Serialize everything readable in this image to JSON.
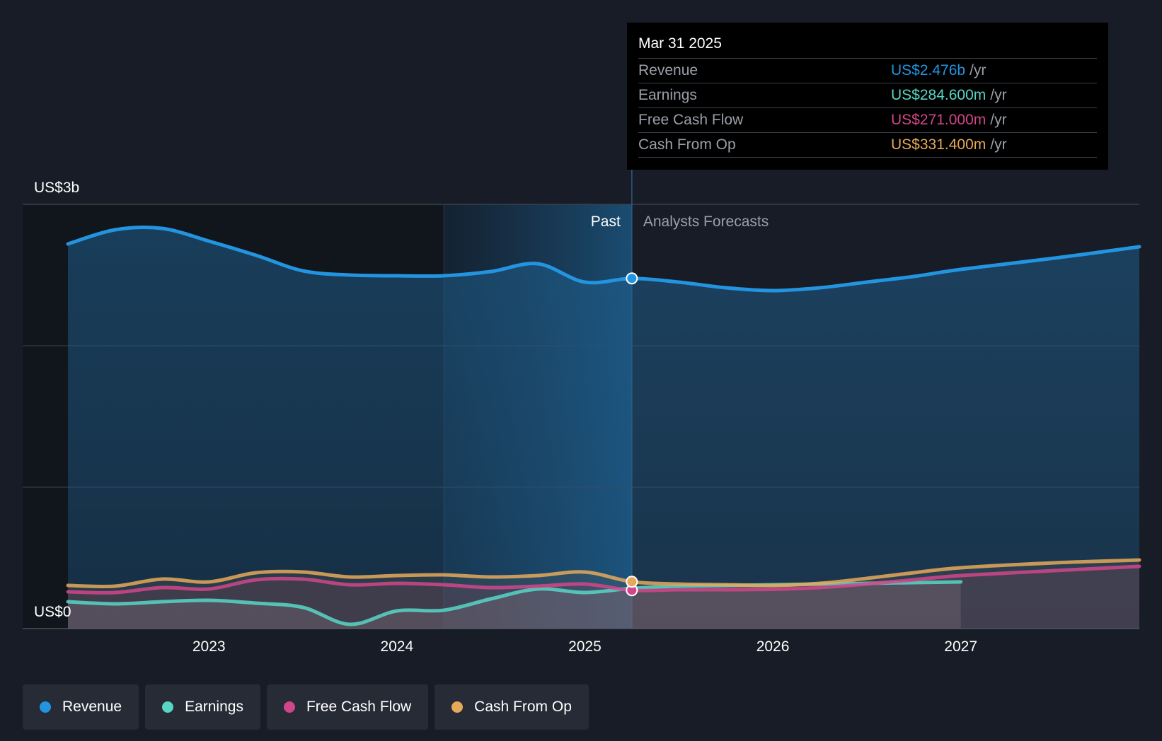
{
  "chart_data": {
    "type": "area",
    "y_axis": {
      "top_label": "US$3b",
      "bottom_label": "US$0",
      "ylim": [
        0,
        3000
      ]
    },
    "x_axis": {
      "ticks": [
        "2023",
        "2024",
        "2025",
        "2026",
        "2027"
      ],
      "xlim": [
        2022.25,
        2027.95
      ]
    },
    "section_labels": {
      "past": "Past",
      "forecast": "Analysts Forecasts"
    },
    "divider_x": 2025.25,
    "series": [
      {
        "name": "Revenue",
        "color": "#2394df",
        "points": [
          [
            2022.25,
            2720
          ],
          [
            2022.5,
            2820
          ],
          [
            2022.75,
            2830
          ],
          [
            2023.0,
            2740
          ],
          [
            2023.25,
            2640
          ],
          [
            2023.5,
            2530
          ],
          [
            2023.75,
            2500
          ],
          [
            2024.0,
            2495
          ],
          [
            2024.25,
            2495
          ],
          [
            2024.5,
            2525
          ],
          [
            2024.75,
            2580
          ],
          [
            2025.0,
            2450
          ],
          [
            2025.25,
            2476
          ],
          [
            2025.5,
            2450
          ],
          [
            2025.75,
            2410
          ],
          [
            2026.0,
            2390
          ],
          [
            2026.25,
            2410
          ],
          [
            2026.5,
            2450
          ],
          [
            2026.75,
            2490
          ],
          [
            2027.0,
            2540
          ],
          [
            2027.5,
            2620
          ],
          [
            2027.95,
            2700
          ]
        ]
      },
      {
        "name": "Earnings",
        "color": "#58d6c5",
        "points": [
          [
            2022.25,
            190
          ],
          [
            2022.5,
            175
          ],
          [
            2022.75,
            190
          ],
          [
            2023.0,
            200
          ],
          [
            2023.25,
            180
          ],
          [
            2023.5,
            150
          ],
          [
            2023.75,
            30
          ],
          [
            2024.0,
            125
          ],
          [
            2024.25,
            130
          ],
          [
            2024.5,
            210
          ],
          [
            2024.75,
            280
          ],
          [
            2025.0,
            255
          ],
          [
            2025.25,
            284.6
          ],
          [
            2025.5,
            300
          ],
          [
            2025.75,
            305
          ],
          [
            2026.0,
            310
          ],
          [
            2026.25,
            315
          ],
          [
            2026.5,
            320
          ],
          [
            2026.75,
            325
          ],
          [
            2027.0,
            330
          ]
        ]
      },
      {
        "name": "Free Cash Flow",
        "color": "#d1468a",
        "points": [
          [
            2022.25,
            260
          ],
          [
            2022.5,
            255
          ],
          [
            2022.75,
            290
          ],
          [
            2023.0,
            280
          ],
          [
            2023.25,
            345
          ],
          [
            2023.5,
            350
          ],
          [
            2023.75,
            310
          ],
          [
            2024.0,
            320
          ],
          [
            2024.25,
            310
          ],
          [
            2024.5,
            290
          ],
          [
            2024.75,
            300
          ],
          [
            2025.0,
            315
          ],
          [
            2025.25,
            271
          ],
          [
            2025.5,
            275
          ],
          [
            2025.75,
            275
          ],
          [
            2026.0,
            278
          ],
          [
            2026.25,
            290
          ],
          [
            2026.5,
            315
          ],
          [
            2026.75,
            345
          ],
          [
            2027.0,
            375
          ],
          [
            2027.5,
            410
          ],
          [
            2027.95,
            440
          ]
        ]
      },
      {
        "name": "Cash From Op",
        "color": "#e6a95a",
        "points": [
          [
            2022.25,
            305
          ],
          [
            2022.5,
            300
          ],
          [
            2022.75,
            350
          ],
          [
            2023.0,
            330
          ],
          [
            2023.25,
            395
          ],
          [
            2023.5,
            400
          ],
          [
            2023.75,
            365
          ],
          [
            2024.0,
            375
          ],
          [
            2024.25,
            380
          ],
          [
            2024.5,
            365
          ],
          [
            2024.75,
            375
          ],
          [
            2025.0,
            400
          ],
          [
            2025.25,
            331.4
          ],
          [
            2025.5,
            315
          ],
          [
            2025.75,
            310
          ],
          [
            2026.0,
            305
          ],
          [
            2026.25,
            320
          ],
          [
            2026.5,
            355
          ],
          [
            2026.75,
            395
          ],
          [
            2027.0,
            430
          ],
          [
            2027.5,
            465
          ],
          [
            2027.95,
            485
          ]
        ]
      }
    ]
  },
  "tooltip": {
    "date": "Mar 31 2025",
    "rows": [
      {
        "label": "Revenue",
        "value": "US$2.476b",
        "unit": "/yr",
        "color": "#2394df"
      },
      {
        "label": "Earnings",
        "value": "US$284.600m",
        "unit": "/yr",
        "color": "#58d6c5"
      },
      {
        "label": "Free Cash Flow",
        "value": "US$271.000m",
        "unit": "/yr",
        "color": "#d1468a"
      },
      {
        "label": "Cash From Op",
        "value": "US$331.400m",
        "unit": "/yr",
        "color": "#e6a95a"
      }
    ]
  },
  "legend": [
    {
      "label": "Revenue",
      "color": "#2394df"
    },
    {
      "label": "Earnings",
      "color": "#58d6c5"
    },
    {
      "label": "Free Cash Flow",
      "color": "#d1468a"
    },
    {
      "label": "Cash From Op",
      "color": "#e6a95a"
    }
  ]
}
